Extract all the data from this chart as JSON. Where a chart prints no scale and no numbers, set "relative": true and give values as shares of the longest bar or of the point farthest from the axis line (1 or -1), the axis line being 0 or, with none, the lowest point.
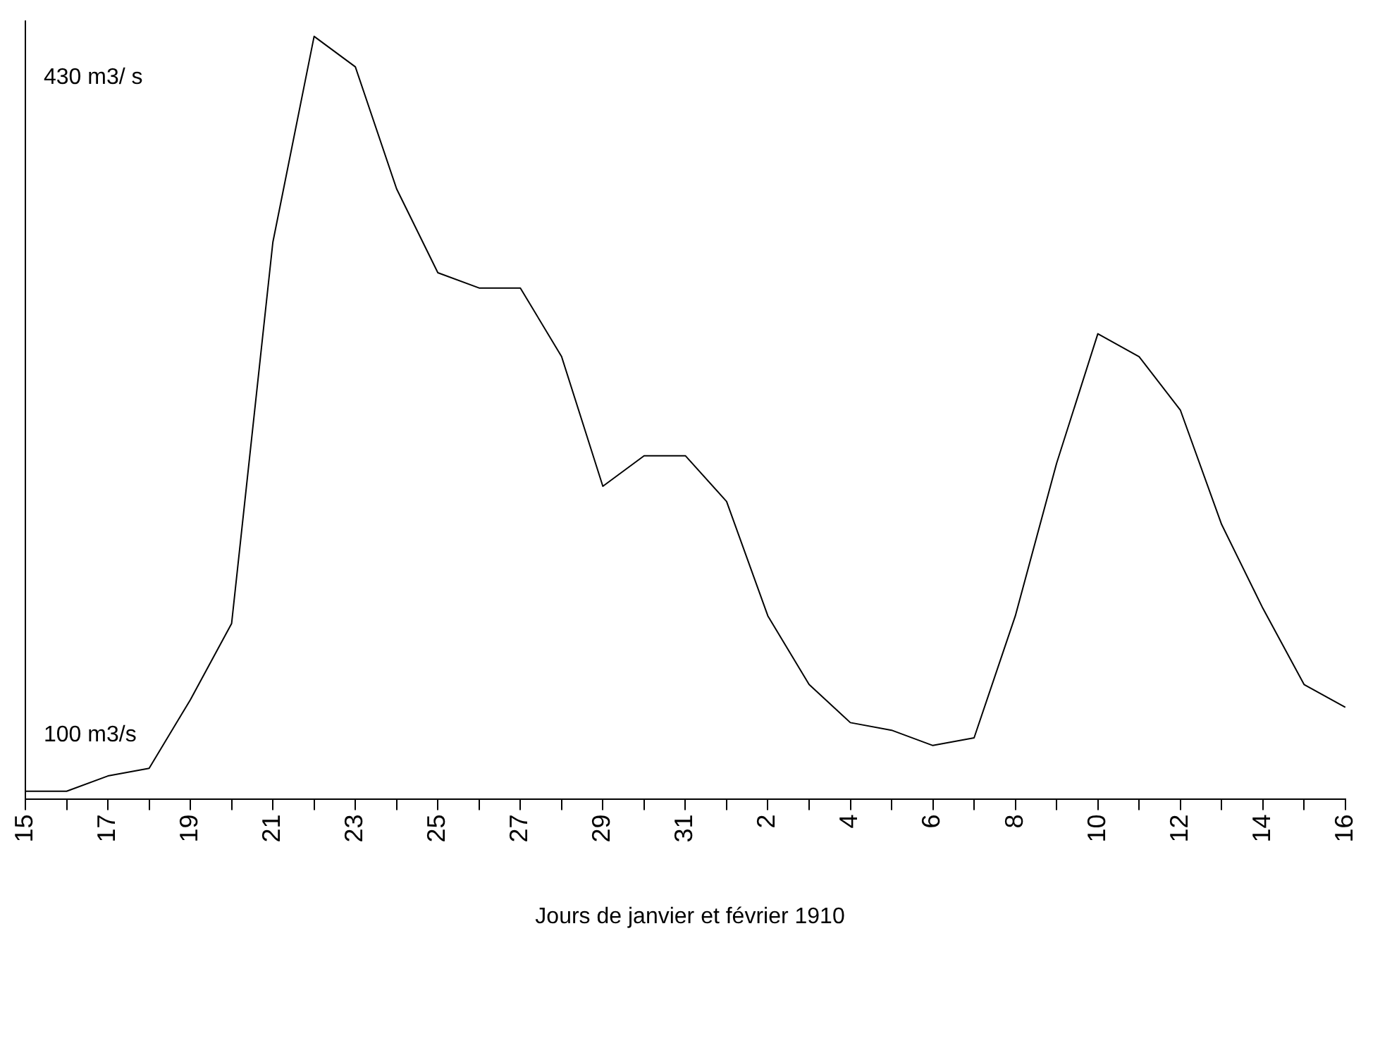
{
  "chart_data": {
    "type": "line",
    "relative": true,
    "xlabel": "Jours de janvier et février 1910",
    "annotations": [
      "430 m3/ s",
      "100 m3/s"
    ],
    "color": "#000000",
    "marker": "none",
    "grid": false,
    "legend": false,
    "categories": [
      "15",
      null,
      "17",
      null,
      "19",
      null,
      "21",
      null,
      "23",
      null,
      "25",
      null,
      "27",
      null,
      "29",
      null,
      "31",
      null,
      "2",
      null,
      "4",
      null,
      "6",
      null,
      "8",
      null,
      "10",
      null,
      "12",
      null,
      "14",
      null,
      "16"
    ],
    "values": [
      0.01,
      0.01,
      0.03,
      0.04,
      0.13,
      0.23,
      0.73,
      1.0,
      0.96,
      0.8,
      0.69,
      0.67,
      0.67,
      0.58,
      0.41,
      0.45,
      0.45,
      0.39,
      0.24,
      0.15,
      0.1,
      0.09,
      0.07,
      0.08,
      0.24,
      0.44,
      0.61,
      0.58,
      0.51,
      0.36,
      0.25,
      0.15,
      0.12
    ]
  }
}
